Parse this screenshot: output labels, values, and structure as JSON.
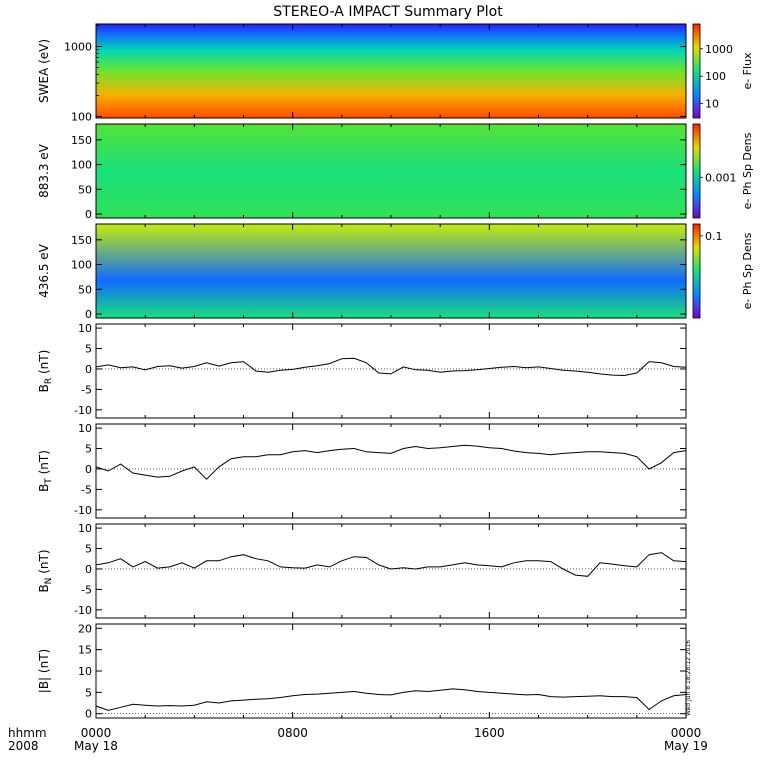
{
  "title": "STEREO-A IMPACT Summary Plot",
  "footer": {
    "hhmm_label": "hhmm",
    "year_label": "2008",
    "stamp": "Wed Jun  8 18:28:12 2016"
  },
  "x_axis": {
    "ticks": [
      {
        "hours": 0,
        "top": "0000",
        "bottom": "May 18"
      },
      {
        "hours": 8,
        "top": "0800",
        "bottom": ""
      },
      {
        "hours": 16,
        "top": "1600",
        "bottom": ""
      },
      {
        "hours": 24,
        "top": "0000",
        "bottom": "May 19"
      }
    ],
    "minor_step_hours": 2,
    "range_hours": [
      0,
      24
    ]
  },
  "chart_data": [
    {
      "id": "swea",
      "type": "heatmap",
      "ylabel": "SWEA (eV)",
      "y_scale": "log",
      "yrange": [
        95,
        2100
      ],
      "yticks": [
        {
          "v": 100,
          "label": "100"
        },
        {
          "v": 1000,
          "label": "1000"
        }
      ],
      "colorbar": {
        "label": "e- Flux",
        "scale": "log",
        "range": [
          3,
          8000
        ],
        "ticks": [
          {
            "v": 10,
            "label": "10"
          },
          {
            "v": 100,
            "label": "100"
          },
          {
            "v": 1000,
            "label": "1000"
          }
        ]
      }
    },
    {
      "id": "pad883",
      "type": "heatmap",
      "ylabel": "883.3 eV",
      "yrange": [
        -8,
        182
      ],
      "yticks": [
        {
          "v": 0,
          "label": "0"
        },
        {
          "v": 50,
          "label": "50"
        },
        {
          "v": 100,
          "label": "100"
        },
        {
          "v": 150,
          "label": "150"
        }
      ],
      "colorbar": {
        "label": "e- Ph Sp Dens",
        "scale": "log",
        "range": [
          0.00015,
          0.012
        ],
        "ticks": [
          {
            "v": 0.001,
            "label": "0.001"
          }
        ]
      }
    },
    {
      "id": "pad436",
      "type": "heatmap",
      "ylabel": "436.5 eV",
      "yrange": [
        -8,
        182
      ],
      "yticks": [
        {
          "v": 0,
          "label": "0"
        },
        {
          "v": 50,
          "label": "50"
        },
        {
          "v": 100,
          "label": "100"
        },
        {
          "v": 150,
          "label": "150"
        }
      ],
      "colorbar": {
        "label": "e- Ph Sp Dens",
        "scale": "log",
        "range": [
          0.006,
          0.15
        ],
        "ticks": [
          {
            "v": 0.1,
            "label": "0.1"
          }
        ]
      }
    },
    {
      "id": "br",
      "type": "line",
      "ylabel": "B",
      "ylabel_sub": "R",
      "ylabel_unit": " (nT)",
      "yrange": [
        -12,
        11
      ],
      "yticks": [
        {
          "v": -10,
          "label": "-10"
        },
        {
          "v": -5,
          "label": "-5"
        },
        {
          "v": 0,
          "label": "0"
        },
        {
          "v": 5,
          "label": "5"
        },
        {
          "v": 10,
          "label": "10"
        }
      ],
      "x": [
        0,
        0.5,
        1,
        1.5,
        2,
        2.5,
        3,
        3.5,
        4,
        4.5,
        5,
        5.5,
        6,
        6.5,
        7,
        7.5,
        8,
        8.5,
        9,
        9.5,
        10,
        10.5,
        11,
        11.5,
        12,
        12.5,
        13,
        13.5,
        14,
        14.5,
        15,
        15.5,
        16,
        16.5,
        17,
        17.5,
        18,
        18.5,
        19,
        19.5,
        20,
        20.5,
        21,
        21.5,
        22,
        22.5,
        23,
        23.5,
        24
      ],
      "y": [
        0.5,
        1.0,
        0.3,
        0.5,
        -0.2,
        0.6,
        0.8,
        0.2,
        0.6,
        1.5,
        0.7,
        1.5,
        1.8,
        -0.5,
        -0.8,
        -0.3,
        -0.1,
        0.4,
        0.8,
        1.3,
        2.5,
        2.6,
        1.5,
        -1.0,
        -1.2,
        0.5,
        -0.2,
        -0.3,
        -0.8,
        -0.5,
        -0.4,
        -0.2,
        0.1,
        0.4,
        0.6,
        0.3,
        0.5,
        0.1,
        -0.3,
        -0.5,
        -0.8,
        -1.2,
        -1.5,
        -1.6,
        -1.0,
        1.8,
        1.5,
        0.6,
        0.4
      ]
    },
    {
      "id": "bt",
      "type": "line",
      "ylabel": "B",
      "ylabel_sub": "T",
      "ylabel_unit": " (nT)",
      "yrange": [
        -12,
        11
      ],
      "yticks": [
        {
          "v": -10,
          "label": "-10"
        },
        {
          "v": -5,
          "label": "-5"
        },
        {
          "v": 0,
          "label": "0"
        },
        {
          "v": 5,
          "label": "5"
        },
        {
          "v": 10,
          "label": "10"
        }
      ],
      "x": [
        0,
        0.5,
        1,
        1.5,
        2,
        2.5,
        3,
        3.5,
        4,
        4.5,
        5,
        5.5,
        6,
        6.5,
        7,
        7.5,
        8,
        8.5,
        9,
        9.5,
        10,
        10.5,
        11,
        11.5,
        12,
        12.5,
        13,
        13.5,
        14,
        14.5,
        15,
        15.5,
        16,
        16.5,
        17,
        17.5,
        18,
        18.5,
        19,
        19.5,
        20,
        20.5,
        21,
        21.5,
        22,
        22.5,
        23,
        23.5,
        24
      ],
      "y": [
        0.5,
        -0.5,
        1.2,
        -1.0,
        -1.5,
        -2.0,
        -1.8,
        -0.5,
        0.5,
        -2.5,
        0.5,
        2.5,
        3.0,
        3.0,
        3.5,
        3.5,
        4.2,
        4.5,
        4.0,
        4.5,
        4.8,
        5.0,
        4.2,
        4.0,
        3.8,
        5.0,
        5.5,
        5.0,
        5.2,
        5.5,
        5.8,
        5.6,
        5.2,
        5.0,
        4.4,
        4.0,
        3.8,
        3.5,
        3.8,
        4.0,
        4.2,
        4.2,
        4.0,
        3.8,
        3.0,
        0.0,
        1.5,
        4.0,
        4.5
      ]
    },
    {
      "id": "bn",
      "type": "line",
      "ylabel": "B",
      "ylabel_sub": "N",
      "ylabel_unit": " (nT)",
      "yrange": [
        -12,
        11
      ],
      "yticks": [
        {
          "v": -10,
          "label": "-10"
        },
        {
          "v": -5,
          "label": "-5"
        },
        {
          "v": 0,
          "label": "0"
        },
        {
          "v": 5,
          "label": "5"
        },
        {
          "v": 10,
          "label": "10"
        }
      ],
      "x": [
        0,
        0.5,
        1,
        1.5,
        2,
        2.5,
        3,
        3.5,
        4,
        4.5,
        5,
        5.5,
        6,
        6.5,
        7,
        7.5,
        8,
        8.5,
        9,
        9.5,
        10,
        10.5,
        11,
        11.5,
        12,
        12.5,
        13,
        13.5,
        14,
        14.5,
        15,
        15.5,
        16,
        16.5,
        17,
        17.5,
        18,
        18.5,
        19,
        19.5,
        20,
        20.5,
        21,
        21.5,
        22,
        22.5,
        23,
        23.5,
        24
      ],
      "y": [
        1.0,
        1.5,
        2.5,
        0.5,
        1.8,
        0.2,
        0.5,
        1.5,
        0.2,
        2.0,
        2.0,
        3.0,
        3.5,
        2.5,
        2.0,
        0.5,
        0.3,
        0.2,
        1.0,
        0.5,
        2.0,
        3.0,
        2.8,
        1.0,
        0.0,
        0.3,
        0.0,
        0.5,
        0.5,
        1.0,
        1.5,
        1.0,
        0.8,
        0.5,
        1.5,
        2.0,
        2.0,
        1.8,
        0.0,
        -1.5,
        -1.8,
        1.5,
        1.2,
        0.8,
        0.5,
        3.5,
        4.0,
        2.0,
        1.8
      ]
    },
    {
      "id": "bmag",
      "type": "line",
      "ylabel": "|B| (nT)",
      "yrange": [
        -1,
        21
      ],
      "yticks": [
        {
          "v": 0,
          "label": "0"
        },
        {
          "v": 5,
          "label": "5"
        },
        {
          "v": 10,
          "label": "10"
        },
        {
          "v": 15,
          "label": "15"
        },
        {
          "v": 20,
          "label": "20"
        }
      ],
      "x": [
        0,
        0.5,
        1,
        1.5,
        2,
        2.5,
        3,
        3.5,
        4,
        4.5,
        5,
        5.5,
        6,
        6.5,
        7,
        7.5,
        8,
        8.5,
        9,
        9.5,
        10,
        10.5,
        11,
        11.5,
        12,
        12.5,
        13,
        13.5,
        14,
        14.5,
        15,
        15.5,
        16,
        16.5,
        17,
        17.5,
        18,
        18.5,
        19,
        19.5,
        20,
        20.5,
        21,
        21.5,
        22,
        22.5,
        23,
        23.5,
        24
      ],
      "y": [
        1.8,
        0.8,
        1.5,
        2.2,
        2.0,
        1.8,
        1.9,
        1.8,
        2.0,
        2.8,
        2.5,
        3.0,
        3.2,
        3.4,
        3.5,
        3.8,
        4.2,
        4.5,
        4.6,
        4.8,
        5.0,
        5.2,
        4.8,
        4.5,
        4.4,
        5.0,
        5.4,
        5.2,
        5.5,
        5.8,
        5.6,
        5.2,
        5.0,
        4.8,
        4.6,
        4.4,
        4.5,
        4.0,
        3.9,
        4.0,
        4.1,
        4.2,
        4.0,
        4.0,
        3.8,
        1.0,
        3.0,
        4.2,
        4.5
      ]
    }
  ]
}
